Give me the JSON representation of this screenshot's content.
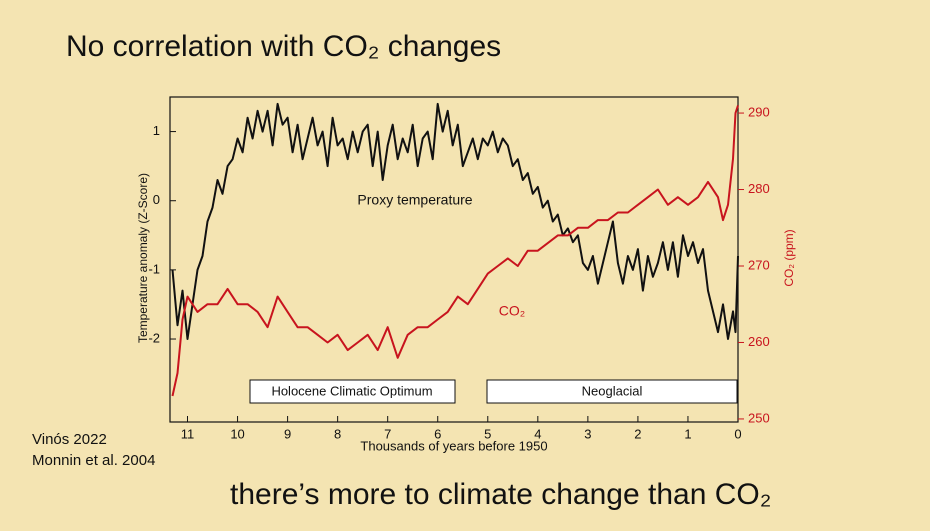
{
  "title": "No correlation with CO₂ changes",
  "footer": "there’s more to climate change than CO₂",
  "sources": [
    "Vinós 2022",
    "Monnin et al. 2004"
  ],
  "chart_data": {
    "type": "line",
    "xlabel": "Thousands of years before 1950",
    "ylabel": "Temperature anomaly (Z-Score)",
    "y2label": "CO₂ (ppm)",
    "annotations": [
      "Proxy temperature",
      "CO₂"
    ],
    "regions": [
      "Holocene Climatic Optimum",
      "Neoglacial"
    ],
    "xlim": [
      11.35,
      0
    ],
    "xticks": [
      11,
      10,
      9,
      8,
      7,
      6,
      5,
      4,
      3,
      2,
      1,
      0
    ],
    "ylim": [
      -3.2,
      1.5
    ],
    "yticks": [
      -2,
      -1,
      0,
      1
    ],
    "y2lim": [
      249.6,
      292.1
    ],
    "y2ticks": [
      250,
      260,
      270,
      280,
      290
    ],
    "series": [
      {
        "name": "Proxy temperature",
        "color": "#111111",
        "x": [
          11.3,
          11.2,
          11.1,
          11.0,
          10.9,
          10.8,
          10.7,
          10.6,
          10.5,
          10.4,
          10.3,
          10.2,
          10.1,
          10.0,
          9.9,
          9.8,
          9.7,
          9.6,
          9.5,
          9.4,
          9.3,
          9.2,
          9.1,
          9.0,
          8.9,
          8.8,
          8.7,
          8.6,
          8.5,
          8.4,
          8.3,
          8.2,
          8.1,
          8.0,
          7.9,
          7.8,
          7.7,
          7.6,
          7.5,
          7.4,
          7.3,
          7.2,
          7.1,
          7.0,
          6.9,
          6.8,
          6.7,
          6.6,
          6.5,
          6.4,
          6.3,
          6.2,
          6.1,
          6.0,
          5.9,
          5.8,
          5.7,
          5.6,
          5.5,
          5.4,
          5.3,
          5.2,
          5.1,
          5.0,
          4.9,
          4.8,
          4.7,
          4.6,
          4.5,
          4.4,
          4.3,
          4.2,
          4.1,
          4.0,
          3.9,
          3.8,
          3.7,
          3.6,
          3.5,
          3.4,
          3.3,
          3.2,
          3.1,
          3.0,
          2.9,
          2.8,
          2.7,
          2.6,
          2.5,
          2.4,
          2.3,
          2.2,
          2.1,
          2.0,
          1.9,
          1.8,
          1.7,
          1.6,
          1.5,
          1.4,
          1.3,
          1.2,
          1.1,
          1.0,
          0.9,
          0.8,
          0.7,
          0.6,
          0.5,
          0.4,
          0.3,
          0.2,
          0.1,
          0.05,
          0.0
        ],
        "values": [
          -1.0,
          -1.8,
          -1.3,
          -2.0,
          -1.5,
          -1.0,
          -0.8,
          -0.3,
          -0.1,
          0.3,
          0.1,
          0.5,
          0.6,
          0.9,
          0.7,
          1.2,
          0.9,
          1.3,
          1.0,
          1.3,
          0.8,
          1.4,
          1.1,
          1.2,
          0.7,
          1.1,
          0.6,
          0.9,
          1.2,
          0.8,
          1.0,
          0.5,
          1.2,
          0.8,
          0.9,
          0.6,
          1.0,
          0.7,
          1.0,
          1.1,
          0.5,
          1.0,
          0.3,
          0.8,
          1.1,
          0.6,
          0.9,
          0.7,
          1.1,
          0.5,
          0.9,
          1.0,
          0.6,
          1.4,
          1.0,
          1.3,
          0.8,
          1.1,
          0.5,
          0.7,
          0.9,
          0.6,
          0.9,
          0.8,
          1.0,
          0.7,
          0.9,
          0.8,
          0.5,
          0.6,
          0.3,
          0.4,
          0.1,
          0.2,
          -0.1,
          0.0,
          -0.3,
          -0.2,
          -0.5,
          -0.4,
          -0.6,
          -0.5,
          -0.9,
          -1.0,
          -0.8,
          -1.2,
          -0.9,
          -0.6,
          -0.3,
          -0.9,
          -1.2,
          -0.8,
          -1.0,
          -0.7,
          -1.3,
          -0.8,
          -1.1,
          -0.9,
          -0.6,
          -1.0,
          -0.6,
          -1.1,
          -0.5,
          -0.8,
          -0.6,
          -0.9,
          -0.7,
          -1.3,
          -1.6,
          -1.9,
          -1.5,
          -2.0,
          -1.6,
          -1.9,
          -0.8
        ]
      },
      {
        "name": "CO₂",
        "color": "#c8141e",
        "axis": "y2",
        "x": [
          11.3,
          11.2,
          11.1,
          11.0,
          10.8,
          10.6,
          10.4,
          10.2,
          10.0,
          9.8,
          9.6,
          9.4,
          9.2,
          9.0,
          8.8,
          8.6,
          8.4,
          8.2,
          8.0,
          7.8,
          7.6,
          7.4,
          7.2,
          7.0,
          6.8,
          6.6,
          6.4,
          6.2,
          6.0,
          5.8,
          5.6,
          5.4,
          5.2,
          5.0,
          4.8,
          4.6,
          4.4,
          4.2,
          4.0,
          3.8,
          3.6,
          3.4,
          3.2,
          3.0,
          2.8,
          2.6,
          2.4,
          2.2,
          2.0,
          1.8,
          1.6,
          1.4,
          1.2,
          1.0,
          0.8,
          0.6,
          0.4,
          0.3,
          0.2,
          0.1,
          0.05,
          0.0
        ],
        "values": [
          253,
          256,
          263,
          266,
          264,
          265,
          265,
          267,
          265,
          265,
          264,
          262,
          266,
          264,
          262,
          262,
          261,
          260,
          261,
          259,
          260,
          261,
          259,
          262,
          258,
          261,
          262,
          262,
          263,
          264,
          266,
          265,
          267,
          269,
          270,
          271,
          270,
          272,
          272,
          273,
          274,
          274,
          275,
          275,
          276,
          276,
          277,
          277,
          278,
          279,
          280,
          278,
          279,
          278,
          279,
          281,
          279,
          276,
          278,
          284,
          290,
          291
        ]
      }
    ]
  }
}
